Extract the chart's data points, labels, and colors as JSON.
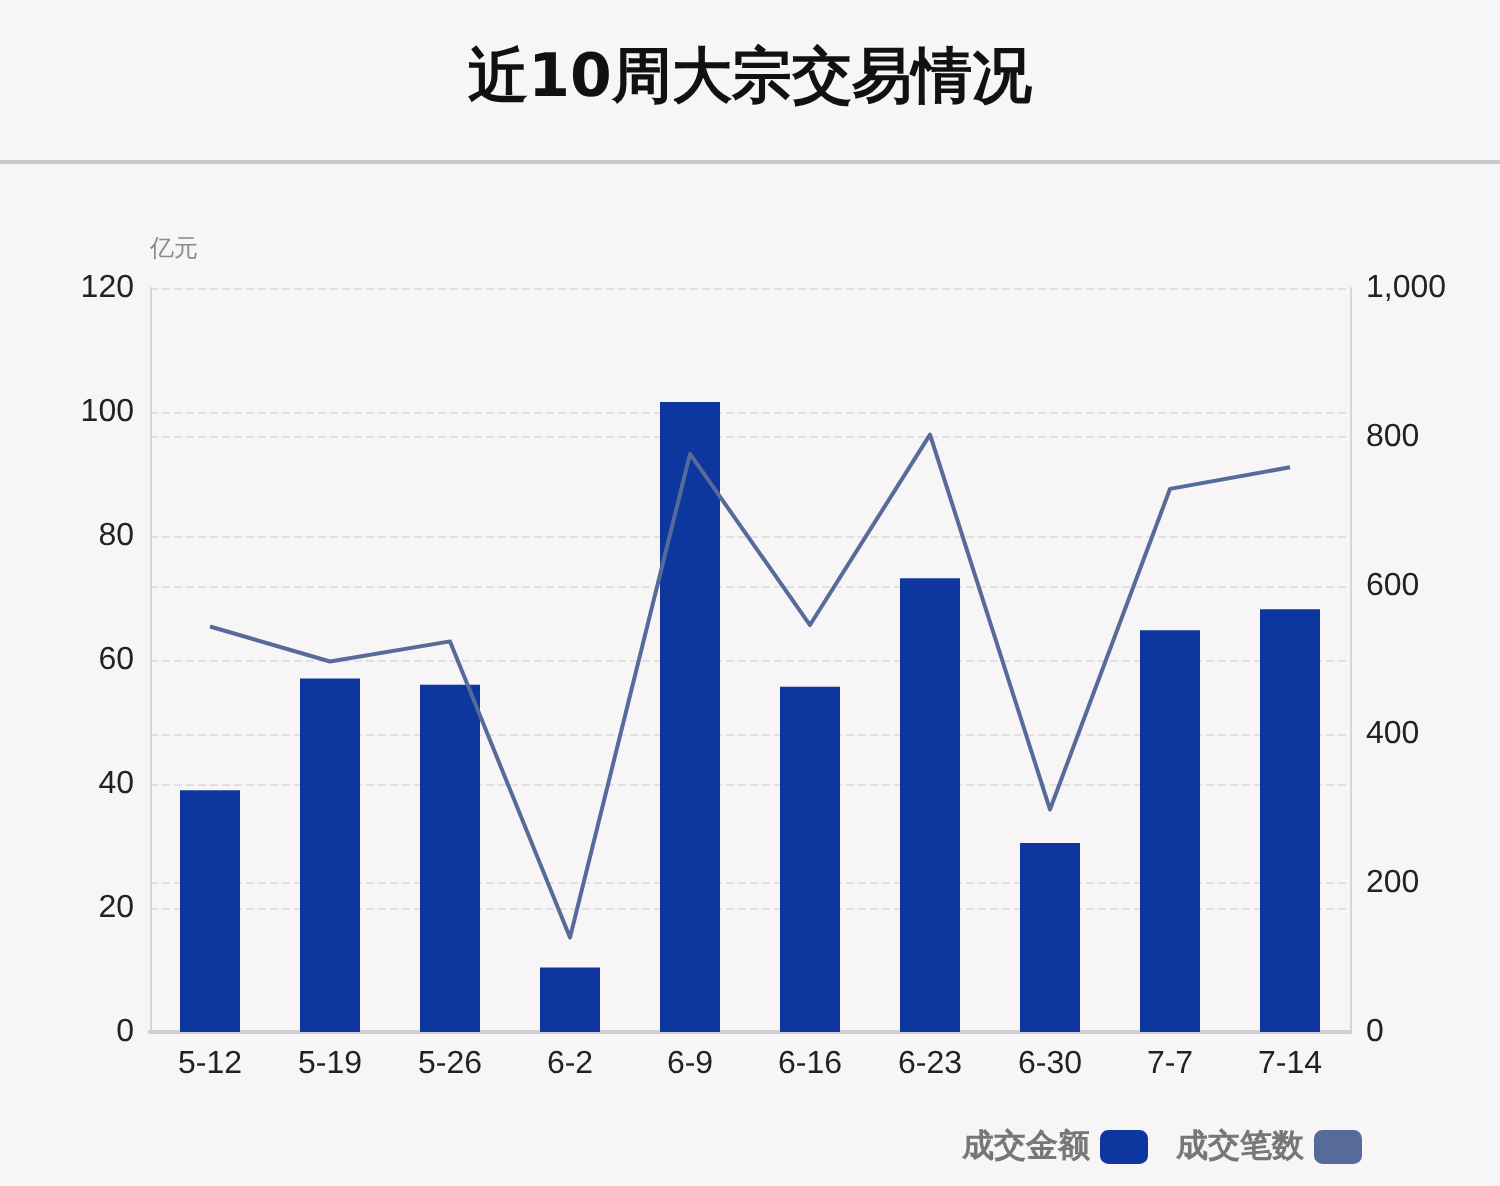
{
  "chart_data": {
    "type": "bar",
    "title": "近10周大宗交易情况",
    "ylabel": "亿元",
    "categories": [
      "5-12",
      "5-19",
      "5-26",
      "6-2",
      "6-9",
      "6-16",
      "6-23",
      "6-30",
      "7-7",
      "7-14"
    ],
    "series": [
      {
        "name": "成交金额",
        "color": "#0d369e",
        "values": [
          39,
          57,
          56,
          10.4,
          101.6,
          55.7,
          73.2,
          30.5,
          64.8,
          68.2
        ]
      },
      {
        "name": "成交笔数",
        "type": "line",
        "axis": "y2",
        "color": "#566b99",
        "values": [
          545,
          498,
          525,
          127,
          777,
          547,
          803,
          299,
          730,
          759
        ]
      }
    ],
    "ylim": [
      0,
      120
    ],
    "yticks": [
      0,
      20,
      40,
      60,
      80,
      100,
      120
    ],
    "y2lim": [
      0,
      1000
    ],
    "y2ticks": [
      0,
      200,
      400,
      600,
      800,
      {
        "value": 1000,
        "label": "1,000"
      }
    ],
    "grid": "y",
    "legend": "bottom right",
    "marker": "none"
  }
}
